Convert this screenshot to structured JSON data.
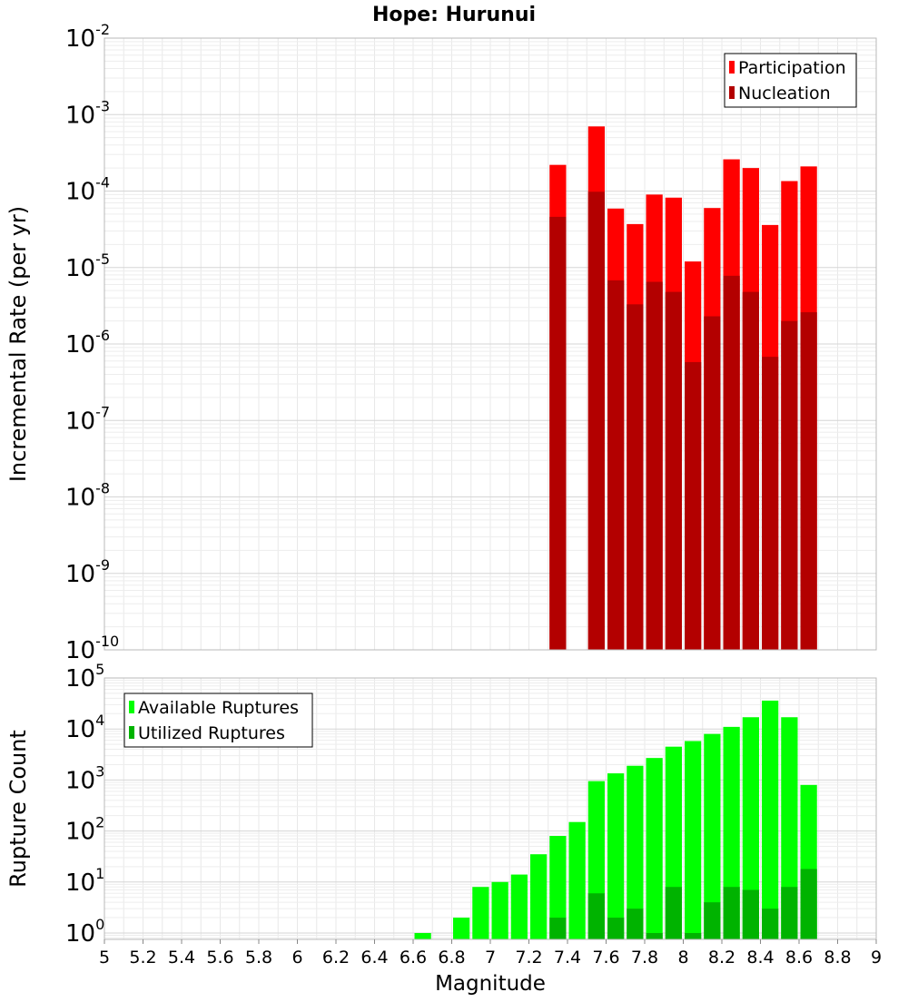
{
  "chart_data": [
    {
      "type": "bar",
      "title": "Hope: Hurunui",
      "xlabel": "",
      "ylabel": "Incremental Rate (per yr)",
      "xlim": [
        5,
        9
      ],
      "ylim": [
        1e-10,
        0.01
      ],
      "y_scale": "log",
      "y_tick_exponents": [
        -10,
        -9,
        -8,
        -7,
        -6,
        -5,
        -4,
        -3,
        -2
      ],
      "grid": true,
      "legend_position": "top-right",
      "series": [
        {
          "name": "Participation",
          "color": "#ff0000",
          "x": [
            7.35,
            7.55,
            7.65,
            7.75,
            7.85,
            7.95,
            8.05,
            8.15,
            8.25,
            8.35,
            8.45,
            8.55,
            8.65
          ],
          "values": [
            0.00022,
            0.0007,
            5.9e-05,
            3.7e-05,
            9e-05,
            8.2e-05,
            1.2e-05,
            6e-05,
            0.00026,
            0.0002,
            3.6e-05,
            0.000135,
            0.00021
          ]
        },
        {
          "name": "Nucleation",
          "color": "#b30000",
          "x": [
            7.35,
            7.55,
            7.65,
            7.75,
            7.85,
            7.95,
            8.05,
            8.15,
            8.25,
            8.35,
            8.45,
            8.55,
            8.65
          ],
          "values": [
            4.6e-05,
            9.8e-05,
            6.8e-06,
            3.3e-06,
            6.5e-06,
            4.8e-06,
            5.8e-07,
            2.3e-06,
            7.8e-06,
            4.8e-06,
            6.8e-07,
            2e-06,
            2.6e-06
          ]
        }
      ]
    },
    {
      "type": "bar",
      "xlabel": "Magnitude",
      "ylabel": "Rupture Count",
      "xlim": [
        5,
        9
      ],
      "x_ticks": [
        "5",
        "5.2",
        "5.4",
        "5.6",
        "5.8",
        "6",
        "6.2",
        "6.4",
        "6.6",
        "6.8",
        "7",
        "7.2",
        "7.4",
        "7.6",
        "7.8",
        "8",
        "8.2",
        "8.4",
        "8.6",
        "8.8",
        "9"
      ],
      "ylim": [
        0.75,
        100000.0
      ],
      "y_scale": "log",
      "y_tick_exponents": [
        0,
        1,
        2,
        3,
        4,
        5
      ],
      "grid": true,
      "legend_position": "top-left",
      "series": [
        {
          "name": "Available Ruptures",
          "color": "#00ff00",
          "x": [
            6.65,
            6.75,
            6.85,
            6.95,
            7.05,
            7.15,
            7.25,
            7.35,
            7.45,
            7.55,
            7.65,
            7.75,
            7.85,
            7.95,
            8.05,
            8.15,
            8.25,
            8.35,
            8.45,
            8.55,
            8.65
          ],
          "values": [
            1,
            0,
            2,
            8,
            10,
            14,
            35,
            80,
            150,
            950,
            1350,
            1900,
            2700,
            4500,
            5800,
            8000,
            11000,
            17000,
            36000,
            17000,
            800
          ]
        },
        {
          "name": "Utilized Ruptures",
          "color": "#00b300",
          "x": [
            6.65,
            6.75,
            6.85,
            6.95,
            7.05,
            7.15,
            7.25,
            7.35,
            7.45,
            7.55,
            7.65,
            7.75,
            7.85,
            7.95,
            8.05,
            8.15,
            8.25,
            8.35,
            8.45,
            8.55,
            8.65
          ],
          "values": [
            0,
            0,
            0,
            0,
            0,
            0,
            0,
            2,
            0,
            6,
            2,
            3,
            1,
            8,
            1,
            4,
            8,
            7,
            3,
            8,
            18
          ]
        }
      ]
    }
  ]
}
